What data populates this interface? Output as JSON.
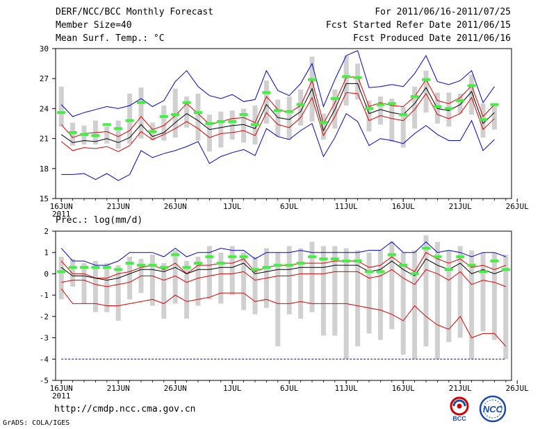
{
  "header": {
    "title": "DERF/NCC/BCC Monthly Forecast",
    "member_size": "Member Size=40",
    "variable": "Mean Surf. Temp.: °C",
    "period": "For 2011/06/16-2011/07/25",
    "started": "Fcst Started Refer Date 2011/06/15",
    "produced": "Fcst Produced Date 2011/06/16"
  },
  "footer": {
    "url": "http://cmdp.ncc.cma.gov.cn",
    "grads": "GrADS: COLA/IGES",
    "logo1_text": "BCC",
    "logo2_text": "NCC"
  },
  "colors": {
    "background": "#ffffff",
    "spread_bar": "#d0d0d0",
    "ensemble_mean": "#000000",
    "inner_band": "#dd0000",
    "outer_envelope": "#0000cc",
    "marker": "#44ee44",
    "logo_red": "#cc0000",
    "logo_blue": "#1a4aa8"
  },
  "chart_data": [
    {
      "type": "line",
      "title": "Mean Surf. Temp.: °C",
      "x_tick_labels": [
        "16JUN",
        "21JUN",
        "26JUN",
        "1JUL",
        "6JUL",
        "11JUL",
        "16JUL",
        "21JUL",
        "26JUL"
      ],
      "x_tick_sub": "2011",
      "ylim": [
        15,
        30
      ],
      "y_ticks": [
        15,
        18,
        21,
        24,
        27,
        30
      ],
      "days": [
        16,
        17,
        18,
        19,
        20,
        21,
        22,
        23,
        24,
        25,
        26,
        27,
        28,
        29,
        30,
        1,
        2,
        3,
        4,
        5,
        6,
        7,
        8,
        9,
        10,
        11,
        12,
        13,
        14,
        15,
        16,
        17,
        18,
        19,
        20,
        21,
        22,
        23,
        24,
        25
      ],
      "series": [
        {
          "name": "envelope_max",
          "color": "blue",
          "values": [
            24.4,
            23.2,
            23.6,
            23.9,
            24.2,
            24.0,
            24.3,
            25.0,
            24.2,
            24.8,
            26.7,
            27.8,
            26.2,
            25.3,
            25.0,
            25.4,
            24.7,
            24.9,
            27.8,
            25.8,
            25.3,
            26.5,
            28.5,
            24.2,
            26.9,
            29.3,
            29.8,
            26.1,
            26.2,
            26.4,
            26.2,
            27.5,
            29.3,
            26.7,
            26.4,
            26.8,
            27.8,
            24.6,
            26.2,
            null
          ]
        },
        {
          "name": "upper_band",
          "color": "red",
          "values": [
            22.4,
            21.1,
            21.5,
            21.6,
            21.7,
            21.2,
            21.8,
            23.2,
            21.9,
            22.3,
            23.3,
            24.5,
            23.5,
            22.4,
            22.7,
            23.0,
            23.1,
            22.6,
            25.2,
            23.9,
            23.6,
            24.3,
            26.8,
            22.5,
            24.6,
            27.1,
            27.2,
            24.2,
            24.6,
            24.3,
            24.2,
            25.2,
            26.9,
            24.8,
            24.5,
            25.1,
            26.3,
            23.2,
            24.4,
            null
          ]
        },
        {
          "name": "ensemble_mean",
          "color": "black",
          "values": [
            21.4,
            20.6,
            20.8,
            20.7,
            21.0,
            20.6,
            21.1,
            22.4,
            21.2,
            21.6,
            22.6,
            23.5,
            22.8,
            21.9,
            22.1,
            22.3,
            22.4,
            22.0,
            24.4,
            23.1,
            22.9,
            23.7,
            26.0,
            21.8,
            23.9,
            26.5,
            26.5,
            23.5,
            23.9,
            23.6,
            23.4,
            24.5,
            26.1,
            24.0,
            23.8,
            24.4,
            25.7,
            22.5,
            23.6,
            null
          ]
        },
        {
          "name": "lower_band",
          "color": "red",
          "values": [
            20.7,
            19.8,
            20.1,
            20.0,
            20.2,
            19.7,
            20.3,
            21.7,
            20.9,
            21.4,
            22.0,
            22.7,
            22.0,
            21.1,
            21.5,
            21.6,
            21.8,
            21.3,
            23.6,
            22.4,
            22.1,
            23.1,
            25.1,
            21.3,
            23.2,
            25.6,
            25.5,
            22.8,
            23.3,
            23.0,
            22.8,
            23.9,
            25.5,
            23.4,
            23.0,
            23.5,
            25.1,
            21.9,
            23.0,
            null
          ]
        },
        {
          "name": "envelope_min",
          "color": "blue",
          "values": [
            17.4,
            17.4,
            17.5,
            16.9,
            17.5,
            16.8,
            17.4,
            19.8,
            19.1,
            19.5,
            19.8,
            20.2,
            20.7,
            18.5,
            19.2,
            19.6,
            19.9,
            19.3,
            22.0,
            21.2,
            20.9,
            21.8,
            22.5,
            19.2,
            21.1,
            23.5,
            22.7,
            20.3,
            21.0,
            20.8,
            20.5,
            21.5,
            22.3,
            21.4,
            20.8,
            20.8,
            22.8,
            19.8,
            20.9,
            null
          ]
        },
        {
          "name": "green_marker",
          "color": "green",
          "values": [
            23.6,
            21.6,
            21.4,
            21.3,
            22.4,
            22.0,
            22.8,
            24.6,
            21.7,
            23.2,
            23.4,
            24.6,
            23.6,
            22.5,
            22.7,
            22.7,
            23.4,
            22.4,
            25.6,
            23.8,
            23.7,
            24.4,
            26.9,
            22.6,
            25.0,
            27.2,
            27.1,
            24.0,
            24.4,
            24.5,
            23.4,
            25.2,
            26.9,
            24.2,
            24.0,
            24.8,
            26.3,
            22.9,
            24.4,
            null
          ]
        }
      ],
      "spread_bars": [
        [
          22.2,
          26.2
        ],
        [
          20.3,
          22.6
        ],
        [
          20.4,
          22.3
        ],
        [
          20.4,
          22.8
        ],
        [
          20.5,
          22.2
        ],
        [
          20.0,
          22.8
        ],
        [
          20.5,
          25.5
        ],
        [
          21.0,
          26.1
        ],
        [
          20.8,
          22.6
        ],
        [
          20.8,
          24.3
        ],
        [
          21.1,
          26.0
        ],
        [
          22.1,
          25.2
        ],
        [
          20.8,
          25.5
        ],
        [
          19.7,
          23.4
        ],
        [
          20.1,
          23.7
        ],
        [
          20.9,
          23.8
        ],
        [
          20.6,
          24.0
        ],
        [
          20.4,
          24.3
        ],
        [
          22.5,
          26.8
        ],
        [
          21.2,
          24.9
        ],
        [
          20.9,
          25.2
        ],
        [
          22.3,
          25.9
        ],
        [
          22.7,
          29.2
        ],
        [
          20.9,
          23.5
        ],
        [
          22.0,
          25.9
        ],
        [
          24.3,
          29.3
        ],
        [
          24.9,
          28.5
        ],
        [
          21.7,
          24.8
        ],
        [
          22.4,
          25.2
        ],
        [
          20.7,
          25.0
        ],
        [
          20.1,
          24.2
        ],
        [
          22.0,
          26.2
        ],
        [
          23.6,
          27.8
        ],
        [
          22.5,
          25.6
        ],
        [
          22.2,
          25.6
        ],
        [
          23.5,
          25.5
        ],
        [
          23.4,
          27.4
        ],
        [
          21.1,
          24.5
        ],
        [
          21.9,
          24.4
        ],
        [
          null,
          null
        ]
      ]
    },
    {
      "type": "line",
      "title": "Prec.: log(mm/d)",
      "x_tick_labels": [
        "16JUN",
        "21JUN",
        "26JUN",
        "1JUL",
        "6JUL",
        "11JUL",
        "16JUL",
        "21JUL",
        "26JUL"
      ],
      "x_tick_sub": "2011",
      "ylim": [
        -5,
        2
      ],
      "y_ticks": [
        -5,
        -4,
        -3,
        -2,
        -1,
        0,
        1,
        2
      ],
      "days": [
        16,
        17,
        18,
        19,
        20,
        21,
        22,
        23,
        24,
        25,
        26,
        27,
        28,
        29,
        30,
        1,
        2,
        3,
        4,
        5,
        6,
        7,
        8,
        9,
        10,
        11,
        12,
        13,
        14,
        15,
        16,
        17,
        18,
        19,
        20,
        21,
        22,
        23,
        24,
        25
      ],
      "series": [
        {
          "name": "envelope_max",
          "color": "blue",
          "values": [
            1.2,
            0.6,
            0.6,
            0.4,
            0.4,
            0.6,
            1.0,
            1.0,
            1.0,
            0.8,
            1.2,
            0.8,
            1.0,
            1.0,
            1.2,
            1.1,
            1.1,
            0.7,
            1.0,
            1.0,
            1.0,
            1.1,
            1.0,
            1.0,
            1.0,
            1.0,
            1.0,
            1.1,
            1.1,
            1.5,
            1.0,
            1.0,
            1.5,
            1.0,
            1.1,
            1.0,
            0.8,
            1.0,
            1.0,
            0.8
          ]
        },
        {
          "name": "upper_band",
          "color": "red",
          "values": [
            0.6,
            0.0,
            0.0,
            -0.2,
            -0.2,
            0.0,
            0.1,
            0.3,
            0.4,
            0.2,
            0.5,
            0.0,
            0.4,
            0.4,
            0.5,
            0.5,
            0.7,
            0.1,
            0.3,
            0.4,
            0.4,
            0.5,
            0.5,
            0.5,
            0.6,
            0.6,
            0.6,
            0.3,
            0.4,
            0.8,
            0.4,
            0.1,
            1.0,
            0.7,
            0.5,
            0.7,
            0.3,
            0.4,
            0.2,
            0.4
          ]
        },
        {
          "name": "ensemble_mean",
          "color": "black",
          "values": [
            0.3,
            -0.1,
            -0.1,
            -0.2,
            -0.3,
            -0.2,
            0.0,
            0.2,
            0.2,
            0.1,
            0.3,
            0.0,
            0.2,
            0.2,
            0.3,
            0.3,
            0.5,
            0.0,
            0.1,
            0.2,
            0.2,
            0.3,
            0.3,
            0.3,
            0.4,
            0.4,
            0.4,
            0.1,
            0.2,
            0.6,
            0.2,
            -0.1,
            0.7,
            0.4,
            0.2,
            0.5,
            0.0,
            0.2,
            0.0,
            0.2
          ]
        },
        {
          "name": "lower_band",
          "color": "red",
          "values": [
            -0.4,
            -0.3,
            -0.3,
            -0.5,
            -0.6,
            -0.5,
            -0.4,
            -0.1,
            -0.1,
            -0.3,
            -0.1,
            -0.4,
            -0.2,
            -0.1,
            0.0,
            0.0,
            0.1,
            -0.3,
            -0.2,
            -0.1,
            -0.1,
            0.0,
            0.0,
            0.0,
            0.1,
            0.1,
            0.1,
            -0.2,
            -0.1,
            0.2,
            -0.2,
            -0.5,
            0.2,
            0.0,
            -0.3,
            0.1,
            -0.5,
            -0.3,
            -0.4,
            -0.6
          ]
        },
        {
          "name": "envelope_min",
          "color": "red",
          "values": [
            -0.7,
            -1.4,
            -1.4,
            -1.4,
            -1.5,
            -1.5,
            -1.4,
            -1.3,
            -1.2,
            -1.4,
            -1.0,
            -1.3,
            -1.2,
            -1.1,
            -0.9,
            -0.9,
            -0.9,
            -1.3,
            -1.2,
            -1.4,
            -1.4,
            -1.3,
            -1.4,
            -1.4,
            -1.4,
            -1.4,
            -1.5,
            -1.6,
            -1.7,
            -1.9,
            -2.2,
            -1.5,
            -2.0,
            -2.4,
            -2.6,
            -2.0,
            -3.0,
            -2.8,
            -2.8,
            -3.4
          ]
        },
        {
          "name": "floor",
          "color": "blue",
          "values": [
            -4.0,
            -4.0,
            -4.0,
            -4.0,
            -4.0,
            -4.0,
            -4.0,
            -4.0,
            -4.0,
            -4.0,
            -4.0,
            -4.0,
            -4.0,
            -4.0,
            -4.0,
            -4.0,
            -4.0,
            -4.0,
            -4.0,
            -4.0,
            -4.0,
            -4.0,
            -4.0,
            -4.0,
            -4.0,
            -4.0,
            -4.0,
            -4.0,
            -4.0,
            -4.0,
            -4.0,
            -4.0,
            -4.0,
            -4.0,
            -4.0,
            -4.0,
            -4.0,
            -4.0,
            -4.0,
            -4.0
          ]
        },
        {
          "name": "green_marker",
          "color": "green",
          "values": [
            0.1,
            0.3,
            0.3,
            0.3,
            0.3,
            0.2,
            0.5,
            0.4,
            0.4,
            0.3,
            0.9,
            0.3,
            0.5,
            0.8,
            0.5,
            0.8,
            0.8,
            0.2,
            0.3,
            0.4,
            0.4,
            0.5,
            0.8,
            0.7,
            0.7,
            0.6,
            0.6,
            0.1,
            0.1,
            0.9,
            0.4,
            0.0,
            1.2,
            0.8,
            0.2,
            0.8,
            0.4,
            0.1,
            0.6,
            0.2
          ]
        }
      ],
      "spread_bars": [
        [
          -1.2,
          0.8
        ],
        [
          -0.6,
          0.7
        ],
        [
          -1.4,
          0.5
        ],
        [
          -1.8,
          0.6
        ],
        [
          -1.8,
          0.5
        ],
        [
          -2.2,
          0.4
        ],
        [
          -1.2,
          0.8
        ],
        [
          -0.9,
          0.7
        ],
        [
          -1.5,
          0.9
        ],
        [
          -2.1,
          0.5
        ],
        [
          -1.4,
          1.1
        ],
        [
          -2.1,
          0.6
        ],
        [
          -1.5,
          0.8
        ],
        [
          -1.2,
          1.3
        ],
        [
          -1.4,
          1.0
        ],
        [
          -1.0,
          1.3
        ],
        [
          -1.7,
          1.0
        ],
        [
          -1.9,
          0.8
        ],
        [
          -1.6,
          1.2
        ],
        [
          -3.4,
          1.0
        ],
        [
          -1.9,
          1.3
        ],
        [
          -2.1,
          1.2
        ],
        [
          -1.8,
          1.5
        ],
        [
          -2.9,
          1.3
        ],
        [
          -2.9,
          1.3
        ],
        [
          -4.0,
          1.2
        ],
        [
          -3.4,
          1.1
        ],
        [
          -2.8,
          1.0
        ],
        [
          -3.1,
          1.1
        ],
        [
          -2.6,
          1.5
        ],
        [
          -3.8,
          1.0
        ],
        [
          -4.0,
          1.1
        ],
        [
          -3.4,
          1.8
        ],
        [
          -4.0,
          1.5
        ],
        [
          -3.2,
          1.1
        ],
        [
          -3.0,
          1.3
        ],
        [
          -4.0,
          1.1
        ],
        [
          -2.7,
          1.0
        ],
        [
          -3.1,
          1.0
        ],
        [
          -4.0,
          0.9
        ]
      ]
    }
  ]
}
